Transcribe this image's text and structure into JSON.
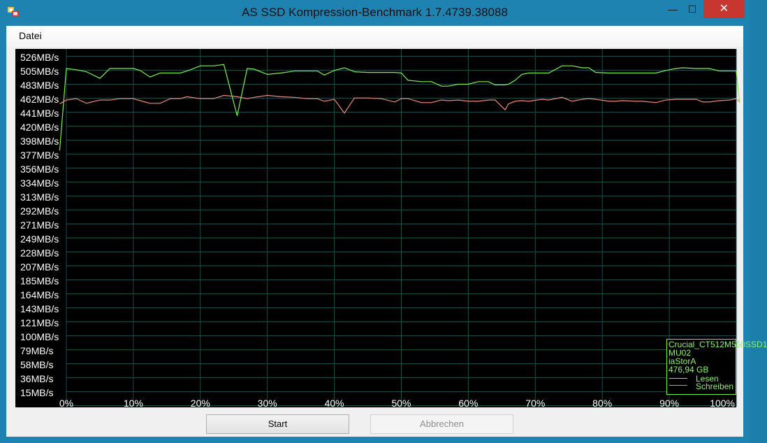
{
  "window": {
    "title": "AS SSD Kompression-Benchmark 1.7.4739.38088",
    "min_glyph": "—",
    "max_glyph": "☐",
    "close_glyph": "✕",
    "app_icon": "as-ssd-app-icon"
  },
  "menu": {
    "items": [
      {
        "label": "Datei"
      }
    ]
  },
  "buttons": {
    "start_label": "Start",
    "cancel_label": "Abbrechen"
  },
  "colors": {
    "plot_background": "#000000",
    "grid": "#1d4a4c",
    "read_series": "#7ff04a",
    "write_series": "#f08a7d",
    "axis_labels": "#ffffff",
    "legend_border": "#71ee3d",
    "legend_text": "#8ef46b"
  },
  "chart_data": {
    "type": "line",
    "y_tick_labels": [
      "526MB/s",
      "505MB/s",
      "483MB/s",
      "462MB/s",
      "441MB/s",
      "420MB/s",
      "398MB/s",
      "377MB/s",
      "356MB/s",
      "334MB/s",
      "313MB/s",
      "292MB/s",
      "271MB/s",
      "249MB/s",
      "228MB/s",
      "207MB/s",
      "185MB/s",
      "164MB/s",
      "143MB/s",
      "121MB/s",
      "100MB/s",
      "79MB/s",
      "58MB/s",
      "36MB/s",
      "15MB/s"
    ],
    "x_tick_labels": [
      "0%",
      "10%",
      "20%",
      "30%",
      "40%",
      "50%",
      "60%",
      "70%",
      "80%",
      "90%",
      "100%"
    ],
    "xlim": [
      0,
      100
    ],
    "ylim": [
      0,
      536
    ],
    "grid": true,
    "legend_position": "bottom-right",
    "series": [
      {
        "name": "Lesen",
        "points": [
          [
            -1,
            384
          ],
          [
            0,
            509
          ],
          [
            1.5,
            507
          ],
          [
            3,
            504
          ],
          [
            5,
            494
          ],
          [
            6.5,
            509
          ],
          [
            8,
            509
          ],
          [
            10,
            509
          ],
          [
            11,
            506
          ],
          [
            12.5,
            496
          ],
          [
            14,
            502
          ],
          [
            15.5,
            502
          ],
          [
            17,
            502
          ],
          [
            18,
            505
          ],
          [
            20,
            513
          ],
          [
            22,
            513
          ],
          [
            23.5,
            515
          ],
          [
            25.5,
            437
          ],
          [
            27,
            509
          ],
          [
            28,
            508
          ],
          [
            30,
            500
          ],
          [
            32,
            502
          ],
          [
            34,
            505
          ],
          [
            36,
            505
          ],
          [
            37.5,
            505
          ],
          [
            38.5,
            499
          ],
          [
            40,
            506
          ],
          [
            41.5,
            510
          ],
          [
            43,
            504
          ],
          [
            45,
            503
          ],
          [
            47,
            503
          ],
          [
            49,
            503
          ],
          [
            50,
            502
          ],
          [
            51,
            491
          ],
          [
            53,
            489
          ],
          [
            54.5,
            489
          ],
          [
            56,
            482
          ],
          [
            57,
            482
          ],
          [
            58.5,
            485
          ],
          [
            60,
            485
          ],
          [
            61.5,
            489
          ],
          [
            63,
            489
          ],
          [
            64,
            484
          ],
          [
            65.5,
            484
          ],
          [
            66,
            485
          ],
          [
            67,
            491
          ],
          [
            68,
            500
          ],
          [
            69,
            502
          ],
          [
            71,
            502
          ],
          [
            72,
            502
          ],
          [
            74,
            513
          ],
          [
            75.5,
            513
          ],
          [
            77,
            510
          ],
          [
            78,
            510
          ],
          [
            79,
            503
          ],
          [
            81,
            502
          ],
          [
            82,
            502
          ],
          [
            83,
            502
          ],
          [
            85,
            502
          ],
          [
            86,
            502
          ],
          [
            88,
            502
          ],
          [
            89.5,
            506
          ],
          [
            91,
            509
          ],
          [
            92,
            510
          ],
          [
            94,
            509
          ],
          [
            95,
            509
          ],
          [
            96,
            509
          ],
          [
            97.5,
            505
          ],
          [
            99,
            505
          ],
          [
            100,
            505
          ],
          [
            100.5,
            457
          ]
        ]
      },
      {
        "name": "Schreiben",
        "points": [
          [
            -1,
            455
          ],
          [
            0,
            461
          ],
          [
            1.5,
            463
          ],
          [
            3,
            456
          ],
          [
            5,
            461
          ],
          [
            6.5,
            461
          ],
          [
            8,
            463
          ],
          [
            10,
            463
          ],
          [
            11,
            460
          ],
          [
            12.5,
            456
          ],
          [
            14,
            456
          ],
          [
            15.5,
            463
          ],
          [
            17,
            463
          ],
          [
            18,
            466
          ],
          [
            20,
            463
          ],
          [
            22,
            463
          ],
          [
            23.5,
            468
          ],
          [
            25.5,
            466
          ],
          [
            27,
            463
          ],
          [
            28,
            465
          ],
          [
            30,
            468
          ],
          [
            32,
            466
          ],
          [
            34,
            465
          ],
          [
            36,
            463
          ],
          [
            37.5,
            463
          ],
          [
            38.5,
            459
          ],
          [
            40,
            462
          ],
          [
            41.5,
            441
          ],
          [
            43,
            464
          ],
          [
            45,
            464
          ],
          [
            47,
            463
          ],
          [
            49,
            458
          ],
          [
            50,
            463
          ],
          [
            51,
            463
          ],
          [
            53,
            457
          ],
          [
            54.5,
            457
          ],
          [
            56,
            461
          ],
          [
            57,
            460
          ],
          [
            58.5,
            461
          ],
          [
            60,
            459
          ],
          [
            61.5,
            459
          ],
          [
            63,
            461
          ],
          [
            64,
            461
          ],
          [
            65.5,
            446
          ],
          [
            66,
            455
          ],
          [
            67,
            459
          ],
          [
            68,
            460
          ],
          [
            69,
            459
          ],
          [
            71,
            462
          ],
          [
            72,
            461
          ],
          [
            74,
            465
          ],
          [
            75.5,
            459
          ],
          [
            77,
            462
          ],
          [
            78,
            463
          ],
          [
            79,
            462
          ],
          [
            81,
            459
          ],
          [
            82,
            459
          ],
          [
            83,
            460
          ],
          [
            85,
            459
          ],
          [
            86,
            459
          ],
          [
            88,
            457
          ],
          [
            89.5,
            461
          ],
          [
            91,
            462
          ],
          [
            92,
            462
          ],
          [
            94,
            462
          ],
          [
            95,
            458
          ],
          [
            96,
            458
          ],
          [
            97.5,
            460
          ],
          [
            99,
            461
          ],
          [
            100,
            463
          ],
          [
            100.5,
            458
          ]
        ]
      }
    ],
    "legend": {
      "device": "Crucial_CT512M550SSD1",
      "firmware": "MU02",
      "driver": "iaStorA",
      "capacity": "476,94 GB",
      "read_label": "Lesen",
      "write_label": "Schreiben"
    }
  }
}
